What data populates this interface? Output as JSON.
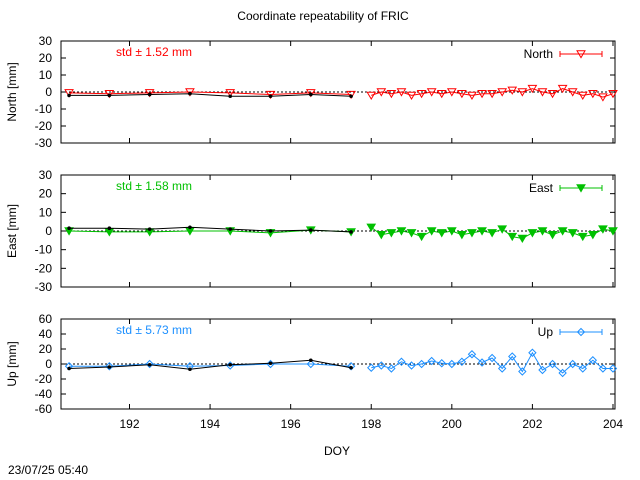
{
  "title": "Coordinate repeatability of FRIC",
  "timestamp": "23/07/25 05:40",
  "chart_data": [
    {
      "type": "line",
      "title": "Coordinate repeatability of FRIC",
      "ylabel": "North [mm]",
      "xlabel": "",
      "xlim": [
        190.3,
        204.05
      ],
      "ylim": [
        -30,
        30
      ],
      "yticks": [
        -30,
        -20,
        -10,
        0,
        10,
        20,
        30
      ],
      "xticks": [
        192,
        194,
        196,
        198,
        200,
        202,
        204
      ],
      "std_label": "std ± 1.52 mm",
      "legend": "North",
      "legend_position": "top-right",
      "color": "#ff0000",
      "marker": "triangle-down-open",
      "series": [
        {
          "role": "daily-markers",
          "x": [
            190.5,
            191.5,
            192.5,
            193.5,
            194.5,
            195.5,
            196.5,
            197.5
          ],
          "values": [
            -0.5,
            -1.0,
            -0.5,
            0.0,
            -0.5,
            -1.5,
            -0.5,
            -1.5
          ]
        },
        {
          "role": "daily-black",
          "x": [
            190.5,
            191.5,
            192.5,
            193.5,
            194.5,
            195.5,
            196.5,
            197.5
          ],
          "values": [
            -2.0,
            -2.0,
            -1.5,
            -1.0,
            -2.5,
            -2.5,
            -1.5,
            -2.5
          ]
        },
        {
          "role": "hourly",
          "x": [
            198.0,
            198.25,
            198.5,
            198.75,
            199.0,
            199.25,
            199.5,
            199.75,
            200.0,
            200.25,
            200.5,
            200.75,
            201.0,
            201.25,
            201.5,
            201.75,
            202.0,
            202.25,
            202.5,
            202.75,
            203.0,
            203.25,
            203.5,
            203.75,
            204.0
          ],
          "values": [
            -2,
            0,
            -1,
            0,
            -2,
            -1,
            0,
            -1,
            0,
            -1,
            -2,
            -1,
            -1,
            0,
            1,
            0,
            2,
            0,
            -1,
            2,
            0,
            -2,
            -1,
            -3,
            -1
          ]
        }
      ],
      "zero_line": true
    },
    {
      "type": "line",
      "ylabel": "East [mm]",
      "xlabel": "",
      "xlim": [
        190.3,
        204.05
      ],
      "ylim": [
        -30,
        30
      ],
      "yticks": [
        -30,
        -20,
        -10,
        0,
        10,
        20,
        30
      ],
      "xticks": [
        192,
        194,
        196,
        198,
        200,
        202,
        204
      ],
      "std_label": "std ± 1.58 mm",
      "legend": "East",
      "legend_position": "top-right",
      "color": "#00c000",
      "marker": "triangle-down-filled",
      "series": [
        {
          "role": "daily-markers",
          "x": [
            190.5,
            191.5,
            192.5,
            193.5,
            194.5,
            195.5,
            196.5,
            197.5
          ],
          "values": [
            0.0,
            -0.5,
            -0.5,
            0.0,
            0.0,
            -1.0,
            0.5,
            -0.5
          ]
        },
        {
          "role": "daily-black",
          "x": [
            190.5,
            191.5,
            192.5,
            193.5,
            194.5,
            195.5,
            196.5,
            197.5
          ],
          "values": [
            1.5,
            1.5,
            1.0,
            2.0,
            1.0,
            0.0,
            0.5,
            -0.5
          ]
        },
        {
          "role": "hourly",
          "x": [
            198.0,
            198.25,
            198.5,
            198.75,
            199.0,
            199.25,
            199.5,
            199.75,
            200.0,
            200.25,
            200.5,
            200.75,
            201.0,
            201.25,
            201.5,
            201.75,
            202.0,
            202.25,
            202.5,
            202.75,
            203.0,
            203.25,
            203.5,
            203.75,
            204.0
          ],
          "values": [
            2,
            -2,
            -1,
            0,
            -1,
            -3,
            0,
            -1,
            0,
            -2,
            -1,
            0,
            -1,
            1,
            -3,
            -4,
            -1,
            0,
            -2,
            0,
            -1,
            -3,
            -2,
            1,
            0
          ]
        }
      ],
      "zero_line": true
    },
    {
      "type": "line",
      "ylabel": "Up [mm]",
      "xlabel": "DOY",
      "xlim": [
        190.3,
        204.05
      ],
      "ylim": [
        -60,
        60
      ],
      "yticks": [
        -60,
        -40,
        -20,
        0,
        20,
        40,
        60
      ],
      "xticks": [
        192,
        194,
        196,
        198,
        200,
        202,
        204
      ],
      "std_label": "std ± 5.73 mm",
      "legend": "Up",
      "legend_position": "top-right",
      "color": "#1e90ff",
      "marker": "diamond-open",
      "series": [
        {
          "role": "daily-markers",
          "x": [
            190.5,
            191.5,
            192.5,
            193.5,
            194.5,
            195.5,
            196.5,
            197.5
          ],
          "values": [
            -3,
            -3,
            0,
            -3,
            -2,
            0,
            0,
            -3
          ]
        },
        {
          "role": "daily-black",
          "x": [
            190.5,
            191.5,
            192.5,
            193.5,
            194.5,
            195.5,
            196.5,
            197.5
          ],
          "values": [
            -6,
            -4,
            -1,
            -7,
            -1,
            1,
            5,
            -5
          ]
        },
        {
          "role": "hourly",
          "x": [
            198.0,
            198.25,
            198.5,
            198.75,
            199.0,
            199.25,
            199.5,
            199.75,
            200.0,
            200.25,
            200.5,
            200.75,
            201.0,
            201.25,
            201.5,
            201.75,
            202.0,
            202.25,
            202.5,
            202.75,
            203.0,
            203.25,
            203.5,
            203.75,
            204.0
          ],
          "values": [
            -5,
            -2,
            -6,
            3,
            -2,
            0,
            4,
            1,
            0,
            3,
            13,
            2,
            8,
            -6,
            10,
            -10,
            15,
            -8,
            0,
            -12,
            0,
            -6,
            5,
            -6,
            -6
          ]
        }
      ],
      "zero_line": true
    }
  ]
}
